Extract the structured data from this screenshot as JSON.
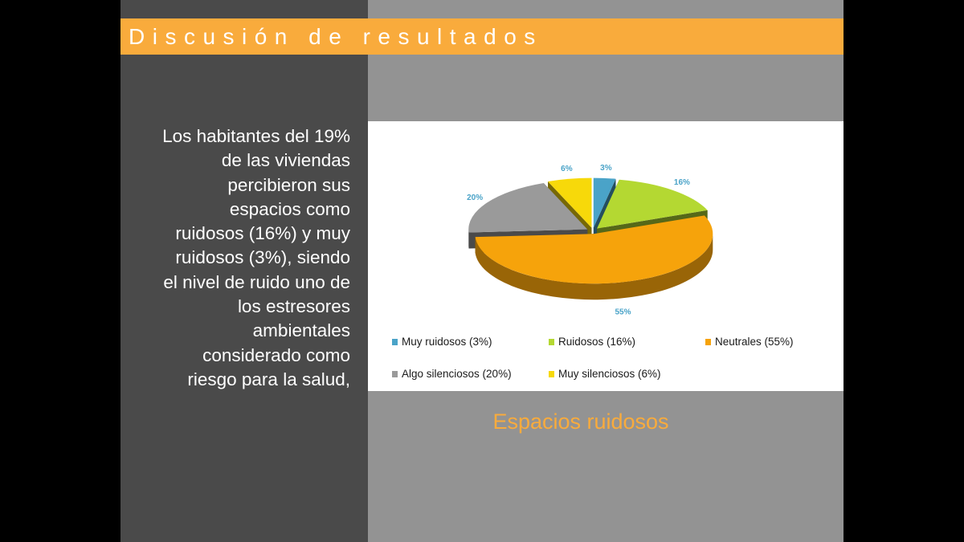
{
  "slide": {
    "title": "Discusión de resultados",
    "body_lines": [
      "Los habitantes del 19%",
      "de las viviendas",
      "percibieron sus",
      "espacios como",
      "ruidosos (16%) y muy",
      "ruidosos (3%), siendo",
      "el nivel de ruido uno de",
      "los estresores",
      "ambientales",
      "considerado como",
      "riesgo para la salud,"
    ],
    "caption": "Espacios ruidosos"
  },
  "chart_data": {
    "type": "pie",
    "style": "3d-exploded",
    "slices": [
      {
        "label": "Muy ruidosos (3%)",
        "value": 3,
        "data_label": "3%",
        "color": "#4aa3c8"
      },
      {
        "label": "Ruidosos (16%)",
        "value": 16,
        "data_label": "16%",
        "color": "#b4d832"
      },
      {
        "label": "Neutrales (55%)",
        "value": 55,
        "data_label": "55%",
        "color": "#f6a30b"
      },
      {
        "label": "Algo silenciosos (20%)",
        "value": 20,
        "data_label": "20%",
        "color": "#9a9a9a"
      },
      {
        "label": "Muy silenciosos (6%)",
        "value": 6,
        "data_label": "6%",
        "color": "#f7d90a"
      }
    ],
    "legend_position": "bottom"
  },
  "colors": {
    "accent": "#f9ab3c",
    "left_panel": "#4a4a4a",
    "right_panel": "#939393"
  }
}
